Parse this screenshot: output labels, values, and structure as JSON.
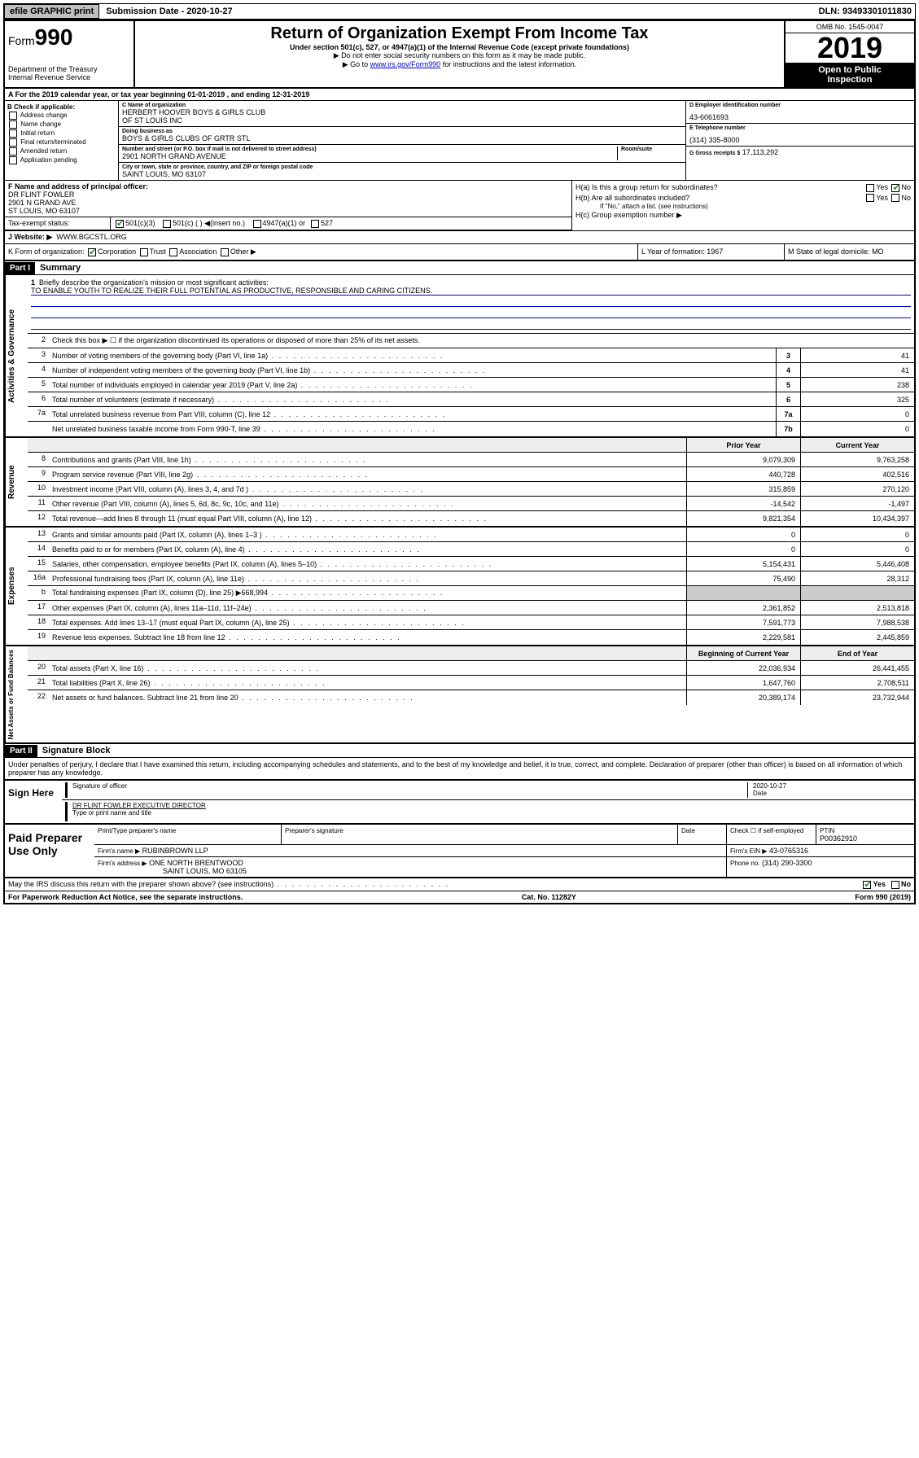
{
  "topbar": {
    "efile": "efile GRAPHIC print",
    "submission_label": "Submission Date - 2020-10-27",
    "dln": "DLN: 93493301011830"
  },
  "header": {
    "form_prefix": "Form",
    "form_num": "990",
    "dept": "Department of the Treasury",
    "irs": "Internal Revenue Service",
    "title": "Return of Organization Exempt From Income Tax",
    "subtitle": "Under section 501(c), 527, or 4947(a)(1) of the Internal Revenue Code (except private foundations)",
    "note1": "▶ Do not enter social security numbers on this form as it may be made public.",
    "note2_pre": "▶ Go to ",
    "note2_link": "www.irs.gov/Form990",
    "note2_post": " for instructions and the latest information.",
    "omb": "OMB No. 1545-0047",
    "year": "2019",
    "open": "Open to Public",
    "inspection": "Inspection"
  },
  "rowA": "A For the 2019 calendar year, or tax year beginning 01-01-2019   , and ending 12-31-2019",
  "boxB": {
    "label": "B Check if applicable:",
    "items": [
      "Address change",
      "Name change",
      "Initial return",
      "Final return/terminated",
      "Amended return",
      "Application pending"
    ]
  },
  "boxC": {
    "name_label": "C Name of organization",
    "name": "HERBERT HOOVER BOYS & GIRLS CLUB",
    "name2": "OF ST LOUIS INC",
    "dba_label": "Doing business as",
    "dba": "BOYS & GIRLS CLUBS OF GRTR STL",
    "addr_label": "Number and street (or P.O. box if mail is not delivered to street address)",
    "room_label": "Room/suite",
    "addr": "2901 NORTH GRAND AVENUE",
    "city_label": "City or town, state or province, country, and ZIP or foreign postal code",
    "city": "SAINT LOUIS, MO  63107"
  },
  "boxD": {
    "label": "D Employer identification number",
    "value": "43-6061693"
  },
  "boxE": {
    "label": "E Telephone number",
    "value": "(314) 335-8000"
  },
  "boxG": {
    "label": "G Gross receipts $",
    "value": "17,113,292"
  },
  "boxF": {
    "label": "F  Name and address of principal officer:",
    "name": "DR FLINT FOWLER",
    "addr1": "2901 N GRAND AVE",
    "addr2": "ST LOUIS, MO  63107"
  },
  "boxH": {
    "a": "H(a)  Is this a group return for subordinates?",
    "b": "H(b)  Are all subordinates included?",
    "b_note": "If \"No,\" attach a list. (see instructions)",
    "c": "H(c)  Group exemption number ▶",
    "yes": "Yes",
    "no": "No"
  },
  "taxStatus": {
    "label": "Tax-exempt status:",
    "opt1": "501(c)(3)",
    "opt2": "501(c) (  ) ◀(insert no.)",
    "opt3": "4947(a)(1) or",
    "opt4": "527"
  },
  "website": {
    "label": "J   Website: ▶",
    "value": "WWW.BGCSTL.ORG"
  },
  "rowK": {
    "label": "K Form of organization:",
    "corp": "Corporation",
    "trust": "Trust",
    "assoc": "Association",
    "other": "Other ▶"
  },
  "rowL": {
    "label": "L Year of formation:",
    "value": "1967"
  },
  "rowM": {
    "label": "M State of legal domicile:",
    "value": "MO"
  },
  "partI": {
    "header": "Part I",
    "title": "Summary"
  },
  "summary": {
    "governance_label": "Activities & Governance",
    "revenue_label": "Revenue",
    "expenses_label": "Expenses",
    "netassets_label": "Net Assets or Fund Balances",
    "q1": "Briefly describe the organization's mission or most significant activities:",
    "mission": "TO ENABLE YOUTH TO REALIZE THEIR FULL POTENTIAL AS PRODUCTIVE, RESPONSIBLE AND CARING CITIZENS.",
    "q2": "Check this box ▶ ☐ if the organization discontinued its operations or disposed of more than 25% of its net assets.",
    "lines_gov": [
      {
        "n": "3",
        "d": "Number of voting members of the governing body (Part VI, line 1a)",
        "b": "3",
        "v": "41"
      },
      {
        "n": "4",
        "d": "Number of independent voting members of the governing body (Part VI, line 1b)",
        "b": "4",
        "v": "41"
      },
      {
        "n": "5",
        "d": "Total number of individuals employed in calendar year 2019 (Part V, line 2a)",
        "b": "5",
        "v": "238"
      },
      {
        "n": "6",
        "d": "Total number of volunteers (estimate if necessary)",
        "b": "6",
        "v": "325"
      },
      {
        "n": "7a",
        "d": "Total unrelated business revenue from Part VIII, column (C), line 12",
        "b": "7a",
        "v": "0"
      },
      {
        "n": "",
        "d": "Net unrelated business taxable income from Form 990-T, line 39",
        "b": "7b",
        "v": "0"
      }
    ],
    "col_head_prior": "Prior Year",
    "col_head_current": "Current Year",
    "lines_rev": [
      {
        "n": "8",
        "d": "Contributions and grants (Part VIII, line 1h)",
        "p": "9,079,309",
        "c": "9,763,258"
      },
      {
        "n": "9",
        "d": "Program service revenue (Part VIII, line 2g)",
        "p": "440,728",
        "c": "402,516"
      },
      {
        "n": "10",
        "d": "Investment income (Part VIII, column (A), lines 3, 4, and 7d )",
        "p": "315,859",
        "c": "270,120"
      },
      {
        "n": "11",
        "d": "Other revenue (Part VIII, column (A), lines 5, 6d, 8c, 9c, 10c, and 11e)",
        "p": "-14,542",
        "c": "-1,497"
      },
      {
        "n": "12",
        "d": "Total revenue—add lines 8 through 11 (must equal Part VIII, column (A), line 12)",
        "p": "9,821,354",
        "c": "10,434,397"
      }
    ],
    "lines_exp": [
      {
        "n": "13",
        "d": "Grants and similar amounts paid (Part IX, column (A), lines 1–3 )",
        "p": "0",
        "c": "0"
      },
      {
        "n": "14",
        "d": "Benefits paid to or for members (Part IX, column (A), line 4)",
        "p": "0",
        "c": "0"
      },
      {
        "n": "15",
        "d": "Salaries, other compensation, employee benefits (Part IX, column (A), lines 5–10)",
        "p": "5,154,431",
        "c": "5,446,408"
      },
      {
        "n": "16a",
        "d": "Professional fundraising fees (Part IX, column (A), line 11e)",
        "p": "75,490",
        "c": "28,312"
      },
      {
        "n": "b",
        "d": "Total fundraising expenses (Part IX, column (D), line 25) ▶668,994",
        "p": "",
        "c": ""
      },
      {
        "n": "17",
        "d": "Other expenses (Part IX, column (A), lines 11a–11d, 11f–24e)",
        "p": "2,361,852",
        "c": "2,513,818"
      },
      {
        "n": "18",
        "d": "Total expenses. Add lines 13–17 (must equal Part IX, column (A), line 25)",
        "p": "7,591,773",
        "c": "7,988,538"
      },
      {
        "n": "19",
        "d": "Revenue less expenses. Subtract line 18 from line 12",
        "p": "2,229,581",
        "c": "2,445,859"
      }
    ],
    "col_head_begin": "Beginning of Current Year",
    "col_head_end": "End of Year",
    "lines_net": [
      {
        "n": "20",
        "d": "Total assets (Part X, line 16)",
        "p": "22,036,934",
        "c": "26,441,455"
      },
      {
        "n": "21",
        "d": "Total liabilities (Part X, line 26)",
        "p": "1,647,760",
        "c": "2,708,511"
      },
      {
        "n": "22",
        "d": "Net assets or fund balances. Subtract line 21 from line 20",
        "p": "20,389,174",
        "c": "23,732,944"
      }
    ]
  },
  "partII": {
    "header": "Part II",
    "title": "Signature Block"
  },
  "perjury": "Under penalties of perjury, I declare that I have examined this return, including accompanying schedules and statements, and to the best of my knowledge and belief, it is true, correct, and complete. Declaration of preparer (other than officer) is based on all information of which preparer has any knowledge.",
  "sign": {
    "left": "Sign Here",
    "sig_officer": "Signature of officer",
    "date": "2020-10-27",
    "date_label": "Date",
    "officer_name": "DR FLINT FOWLER  EXECUTIVE DIRECTOR",
    "type_label": "Type or print name and title"
  },
  "paid": {
    "left": "Paid Preparer Use Only",
    "h1": "Print/Type preparer's name",
    "h2": "Preparer's signature",
    "h3": "Date",
    "h4": "Check ☐ if self-employed",
    "h5_label": "PTIN",
    "h5": "P00362910",
    "firm_name_label": "Firm's name    ▶",
    "firm_name": "RUBINBROWN LLP",
    "firm_ein_label": "Firm's EIN ▶",
    "firm_ein": "43-0765316",
    "firm_addr_label": "Firm's address ▶",
    "firm_addr1": "ONE NORTH BRENTWOOD",
    "firm_addr2": "SAINT LOUIS, MO  63105",
    "phone_label": "Phone no.",
    "phone": "(314) 290-3300"
  },
  "footer": {
    "discuss": "May the IRS discuss this return with the preparer shown above? (see instructions)",
    "yes": "Yes",
    "no": "No",
    "paperwork": "For Paperwork Reduction Act Notice, see the separate instructions.",
    "cat": "Cat. No. 11282Y",
    "form": "Form 990 (2019)"
  }
}
